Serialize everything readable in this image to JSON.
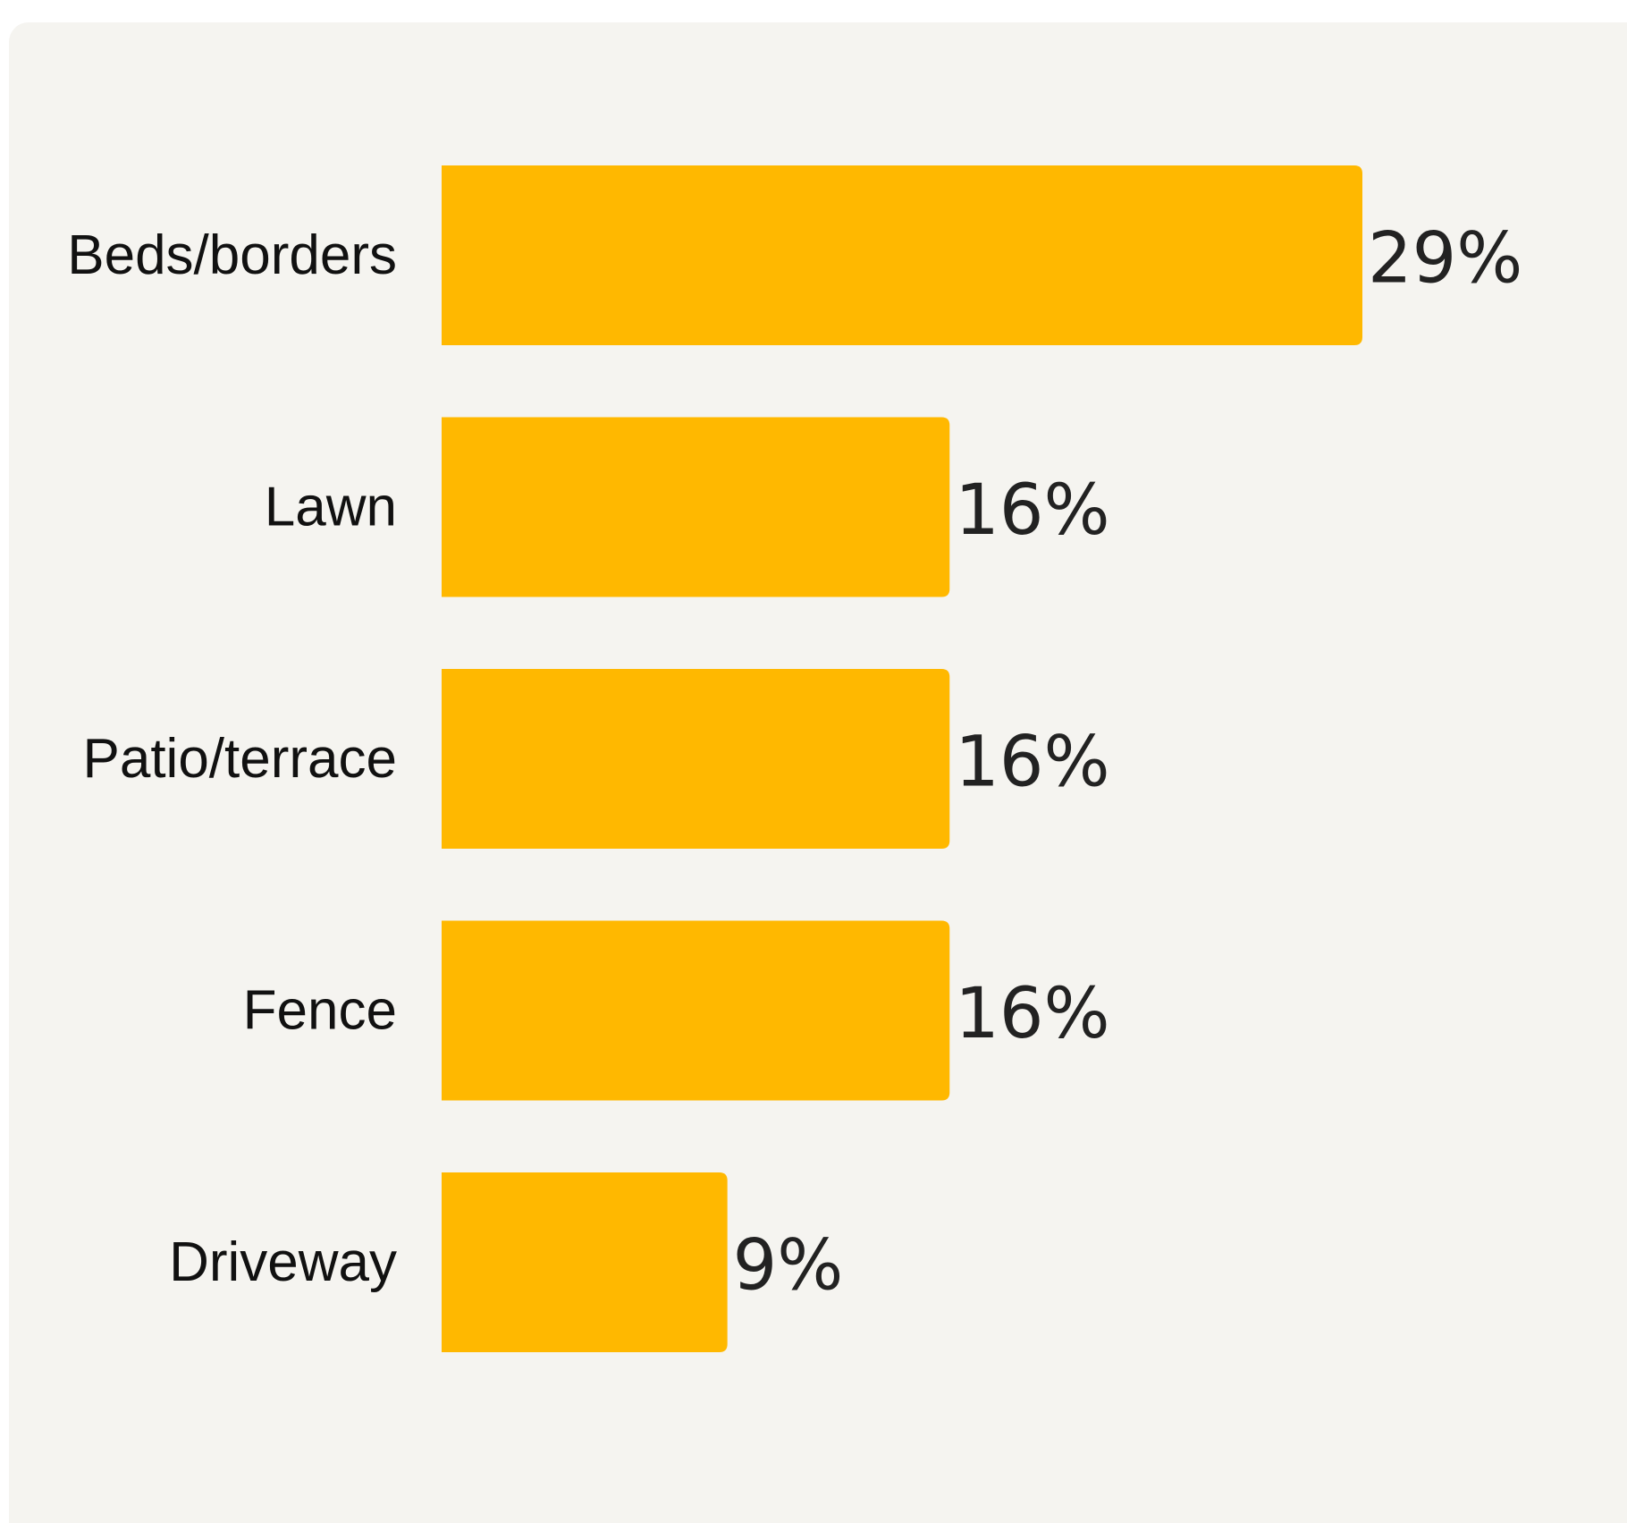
{
  "chart_data": {
    "type": "bar",
    "orientation": "horizontal",
    "categories": [
      "Beds/borders",
      "Lawn",
      "Patio/terrace",
      "Fence",
      "Driveway"
    ],
    "values": [
      29,
      16,
      16,
      16,
      9
    ],
    "value_labels": [
      "29%",
      "16%",
      "16%",
      "16%",
      "9%"
    ],
    "unit": "%",
    "xlim": [
      0,
      29
    ],
    "grid": false,
    "legend": "none",
    "colors": {
      "bar": "#FFB800",
      "background": "#F5F4F0",
      "category_text": "#111111",
      "value_text": "#222222"
    }
  }
}
